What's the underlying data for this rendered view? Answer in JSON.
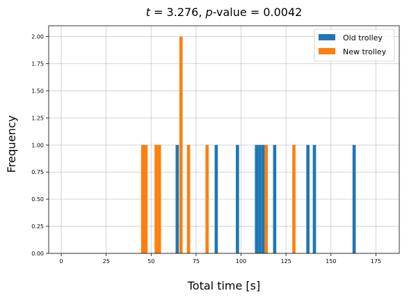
{
  "chart_data": {
    "type": "bar",
    "title_parts": {
      "t_symbol": "t",
      "t_value": " = 3.276, ",
      "p_symbol": "p",
      "p_rest": "-value = 0.0042"
    },
    "xlabel": "Total time [s]",
    "ylabel": "Frequency",
    "xlim": [
      -7,
      188
    ],
    "ylim": [
      0,
      2.1
    ],
    "xticks": [
      0,
      25,
      50,
      75,
      100,
      125,
      150,
      175
    ],
    "xtick_labels": [
      "0",
      "25",
      "50",
      "75",
      "100",
      "125",
      "150",
      "175"
    ],
    "yticks": [
      0,
      0.25,
      0.5,
      0.75,
      1.0,
      1.25,
      1.5,
      1.75,
      2.0
    ],
    "ytick_labels": [
      "0.00",
      "0.25",
      "0.50",
      "0.75",
      "1.00",
      "1.25",
      "1.50",
      "1.75",
      "2.00"
    ],
    "grid": true,
    "legend_position": "top-right",
    "bin_width": 1.8,
    "series": [
      {
        "name": "Old trolley",
        "color": "#1f77b4",
        "bars": [
          {
            "x": 64.5,
            "count": 1
          },
          {
            "x": 86.2,
            "count": 1
          },
          {
            "x": 98.0,
            "count": 1
          },
          {
            "x": 108.6,
            "count": 1
          },
          {
            "x": 110.4,
            "count": 1
          },
          {
            "x": 112.2,
            "count": 1
          },
          {
            "x": 118.7,
            "count": 1
          },
          {
            "x": 137.2,
            "count": 1
          },
          {
            "x": 140.8,
            "count": 1
          },
          {
            "x": 162.9,
            "count": 1
          }
        ]
      },
      {
        "name": "New trolley",
        "color": "#ff7f0e",
        "bars": [
          {
            "x": 45.3,
            "count": 1
          },
          {
            "x": 47.1,
            "count": 1
          },
          {
            "x": 52.8,
            "count": 1
          },
          {
            "x": 54.6,
            "count": 1
          },
          {
            "x": 66.6,
            "count": 2
          },
          {
            "x": 70.8,
            "count": 1
          },
          {
            "x": 81.1,
            "count": 1
          },
          {
            "x": 114.0,
            "count": 1
          },
          {
            "x": 129.4,
            "count": 1
          }
        ]
      }
    ]
  }
}
